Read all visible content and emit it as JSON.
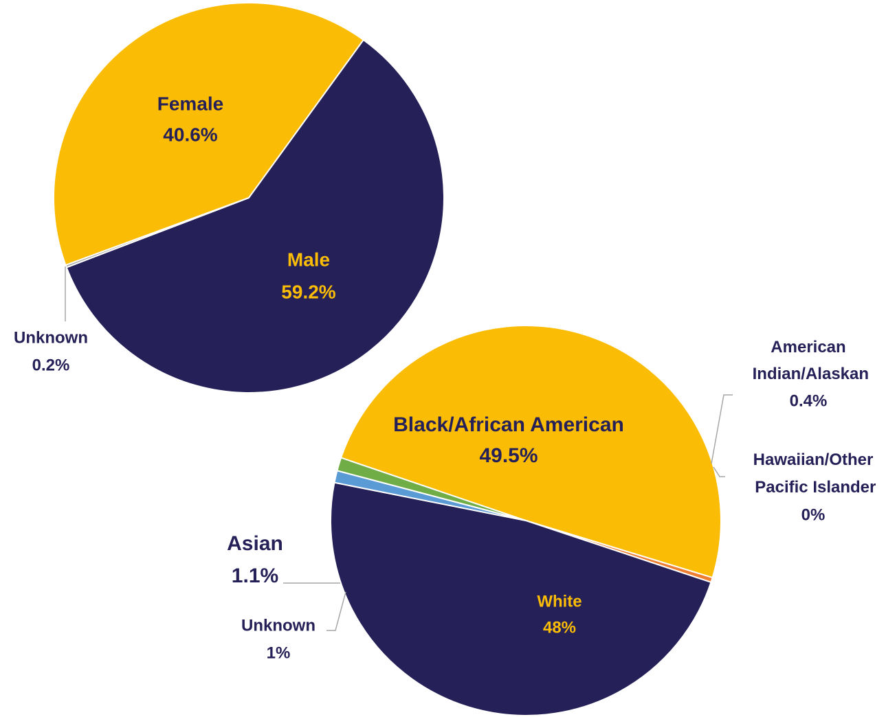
{
  "chart_data": [
    {
      "type": "pie",
      "categories": [
        "Female",
        "Male",
        "Unknown"
      ],
      "values": [
        40.6,
        59.2,
        0.2
      ],
      "value_labels": [
        "40.6%",
        "59.2%",
        "0.2%"
      ],
      "colors": [
        "#fbbc05",
        "#252057",
        "#a5a5a5"
      ]
    },
    {
      "type": "pie",
      "categories": [
        "Black/African American",
        "American Indian/Alaskan",
        "Hawaiian/Other Pacific Islander",
        "White",
        "Unknown",
        "Asian"
      ],
      "values": [
        49.5,
        0.4,
        0,
        48,
        1,
        1.1
      ],
      "value_labels": [
        "49.5%",
        "0.4%",
        "0%",
        "48%",
        "1%",
        "1.1%"
      ],
      "colors": [
        "#fbbc05",
        "#ed7d31",
        "#a5a5a5",
        "#252057",
        "#5b9bd5",
        "#70ad47"
      ]
    }
  ]
}
